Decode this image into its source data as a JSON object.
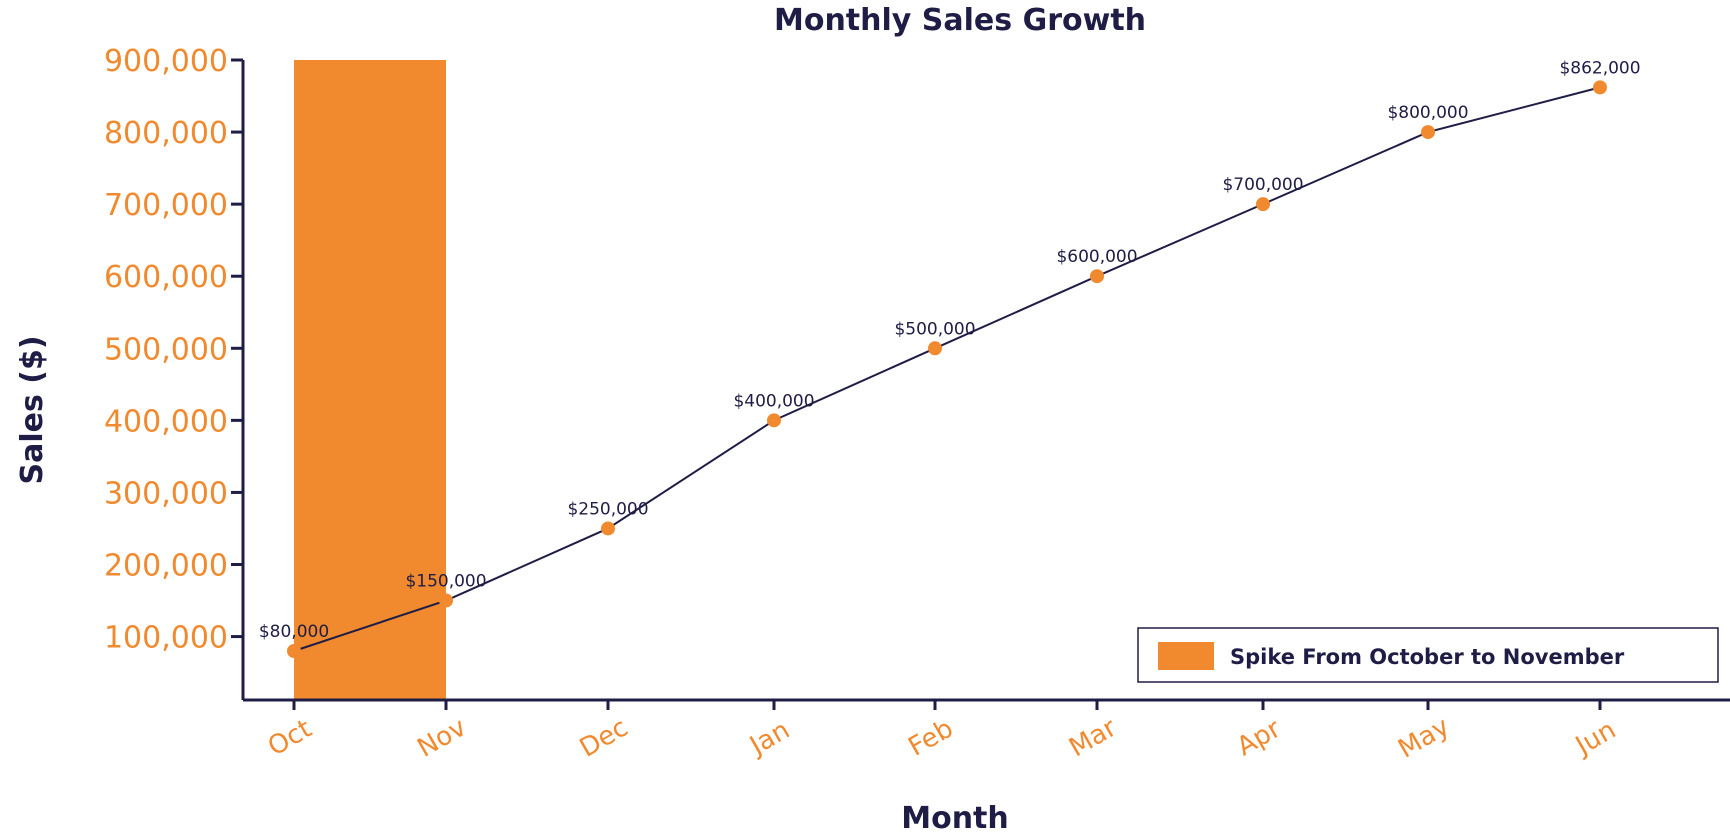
{
  "chart_data": {
    "type": "line",
    "title": "Monthly Sales Growth",
    "xlabel": "Month",
    "ylabel": "Sales ($)",
    "categories": [
      "Oct",
      "Nov",
      "Dec",
      "Jan",
      "Feb",
      "Mar",
      "Apr",
      "May",
      "Jun"
    ],
    "series": [
      {
        "values": [
          80000,
          150000,
          250000,
          400000,
          500000,
          600000,
          700000,
          800000,
          862000
        ],
        "data_labels": [
          "$80,000",
          "$150,000",
          "$250,000",
          "$400,000",
          "$500,000",
          "$600,000",
          "$700,000",
          "$800,000",
          "$862,000"
        ]
      }
    ],
    "yticks": [
      100000,
      200000,
      300000,
      400000,
      500000,
      600000,
      700000,
      800000,
      900000
    ],
    "ytick_labels": [
      "100,000",
      "200,000",
      "300,000",
      "400,000",
      "500,000",
      "600,000",
      "700,000",
      "800,000",
      "900,000"
    ],
    "ylim": [
      12000,
      900000
    ],
    "grid": false,
    "highlight": {
      "label": "Spike From October to November",
      "from": "Oct",
      "to": "Nov"
    },
    "legend_position": "bottom-right"
  },
  "colors": {
    "line": "#1f1d45",
    "marker": "#f18a2f",
    "highlight": "#f18a2f",
    "axis": "#1f1d45",
    "tick_text": "#f18a2f"
  }
}
